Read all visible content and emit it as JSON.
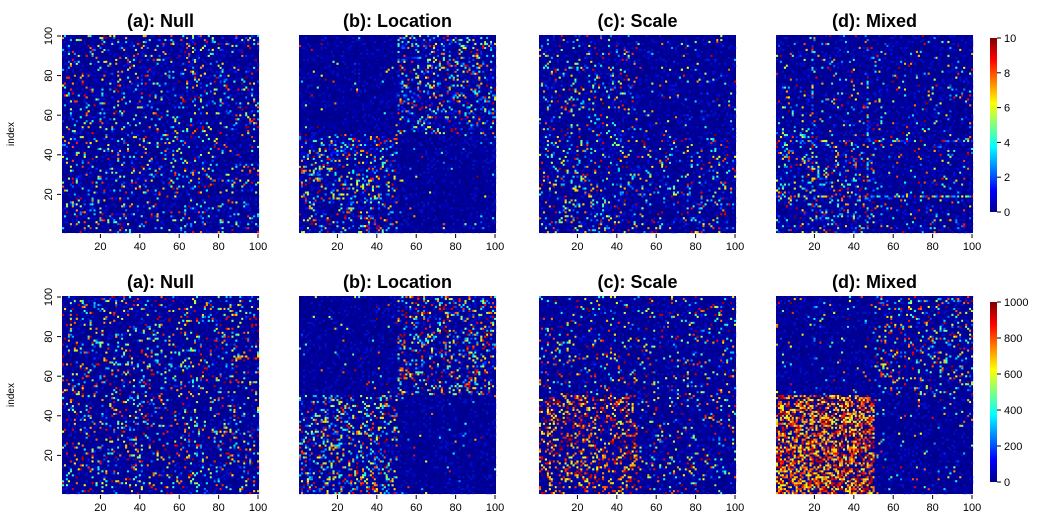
{
  "chart_data": [
    {
      "type": "heatmap",
      "row": 1,
      "title": "(a): Null",
      "ylabel": "index",
      "x_ticks": [
        "20",
        "40",
        "60",
        "80",
        "100"
      ],
      "y_ticks": [
        "20",
        "40",
        "60",
        "80",
        "100"
      ],
      "xlim": [
        1,
        100
      ],
      "ylim": [
        1,
        100
      ],
      "value_range": [
        0,
        10
      ],
      "pattern": "uniform sparse random entries across the whole matrix"
    },
    {
      "type": "heatmap",
      "row": 1,
      "title": "(b): Location",
      "x_ticks": [
        "20",
        "40",
        "60",
        "80",
        "100"
      ],
      "y_ticks": [
        "20",
        "40",
        "60",
        "80",
        "100"
      ],
      "xlim": [
        1,
        100
      ],
      "ylim": [
        1,
        100
      ],
      "value_range": [
        0,
        10
      ],
      "pattern": "dense blocks for indices 1-50 x 1-50 and 51-100 x 51-100"
    },
    {
      "type": "heatmap",
      "row": 1,
      "title": "(c): Scale",
      "x_ticks": [
        "20",
        "40",
        "60",
        "80",
        "100"
      ],
      "y_ticks": [
        "20",
        "40",
        "60",
        "80",
        "100"
      ],
      "xlim": [
        1,
        100
      ],
      "ylim": [
        1,
        100
      ],
      "value_range": [
        0,
        10
      ],
      "pattern": "denser entries involving indices 1-50, strongest in 1-50 x 1-50"
    },
    {
      "type": "heatmap",
      "row": 1,
      "title": "(d): Mixed",
      "x_ticks": [
        "20",
        "40",
        "60",
        "80",
        "100"
      ],
      "y_ticks": [
        "20",
        "40",
        "60",
        "80",
        "100"
      ],
      "xlim": [
        1,
        100
      ],
      "ylim": [
        1,
        100
      ],
      "value_range": [
        0,
        10
      ],
      "pattern": "dense block 1-50 x 1-50 with bright lines near index 46"
    },
    {
      "type": "heatmap",
      "row": 2,
      "title": "(a): Null",
      "ylabel": "index",
      "x_ticks": [
        "20",
        "40",
        "60",
        "80",
        "100"
      ],
      "y_ticks": [
        "20",
        "40",
        "60",
        "80",
        "100"
      ],
      "xlim": [
        1,
        100
      ],
      "ylim": [
        1,
        100
      ],
      "value_range": [
        0,
        1000
      ],
      "pattern": "uniform sparse random entries across the whole matrix"
    },
    {
      "type": "heatmap",
      "row": 2,
      "title": "(b): Location",
      "x_ticks": [
        "20",
        "40",
        "60",
        "80",
        "100"
      ],
      "y_ticks": [
        "20",
        "40",
        "60",
        "80",
        "100"
      ],
      "xlim": [
        1,
        100
      ],
      "ylim": [
        1,
        100
      ],
      "value_range": [
        0,
        1000
      ],
      "pattern": "dense blocks for indices 1-50 x 1-50 and 51-100 x 51-100"
    },
    {
      "type": "heatmap",
      "row": 2,
      "title": "(c): Scale",
      "x_ticks": [
        "20",
        "40",
        "60",
        "80",
        "100"
      ],
      "y_ticks": [
        "20",
        "40",
        "60",
        "80",
        "100"
      ],
      "xlim": [
        1,
        100
      ],
      "ylim": [
        1,
        100
      ],
      "value_range": [
        0,
        1000
      ],
      "pattern": "high values in block 1-50 x 1-50"
    },
    {
      "type": "heatmap",
      "row": 2,
      "title": "(d): Mixed",
      "x_ticks": [
        "20",
        "40",
        "60",
        "80",
        "100"
      ],
      "y_ticks": [
        "20",
        "40",
        "60",
        "80",
        "100"
      ],
      "xlim": [
        1,
        100
      ],
      "ylim": [
        1,
        100
      ],
      "value_range": [
        0,
        1000
      ],
      "pattern": "very dense high values in block 1-50 x 1-50, moderate in 51-100 x 51-100"
    }
  ],
  "colorbars": [
    {
      "row": 1,
      "ticks": [
        "0",
        "2",
        "4",
        "6",
        "8",
        "10"
      ],
      "range": [
        0,
        10
      ]
    },
    {
      "row": 2,
      "ticks": [
        "0",
        "200",
        "400",
        "600",
        "800",
        "1000"
      ],
      "range": [
        0,
        1000
      ]
    }
  ],
  "colors": {
    "low": "#00008B",
    "background_cell": "#0a1a9c",
    "scale": [
      "#00008F",
      "#0000FF",
      "#0080FF",
      "#00FFFF",
      "#80FF80",
      "#FFFF00",
      "#FF8000",
      "#FF0000",
      "#800000"
    ]
  }
}
